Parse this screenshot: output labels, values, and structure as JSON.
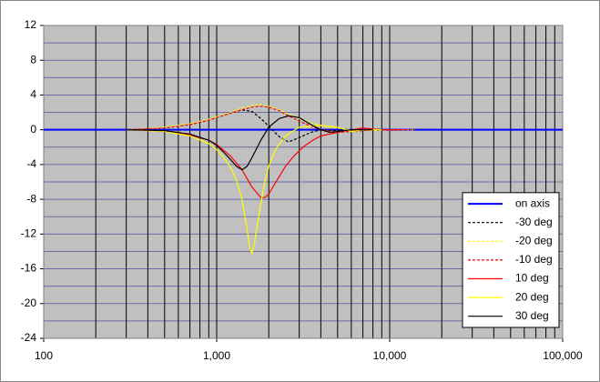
{
  "chart_data": {
    "type": "line",
    "xscale": "log",
    "xlim": [
      100,
      100000
    ],
    "ylim": [
      -24,
      12
    ],
    "xticks": [
      {
        "value": 100,
        "label": "100"
      },
      {
        "value": 1000,
        "label": "1,000"
      },
      {
        "value": 10000,
        "label": "10,000"
      },
      {
        "value": 100000,
        "label": "100,000"
      }
    ],
    "yticks": [
      12,
      8,
      4,
      0,
      -4,
      -8,
      -12,
      -16,
      -20,
      -24
    ],
    "grid": true,
    "minor_grid": true,
    "legend": "lower right",
    "series": [
      {
        "name": "on axis",
        "color": "#0000ff",
        "dash": false,
        "x": [
          100,
          100000
        ],
        "values": [
          0,
          0
        ]
      },
      {
        "name": "-30 deg",
        "color": "#000000",
        "dash": true,
        "x": [
          300,
          500,
          700,
          900,
          1000,
          1200,
          1400,
          1600,
          1800,
          2000,
          2300,
          2600,
          3000,
          3500,
          4000,
          5000,
          7000,
          10000
        ],
        "values": [
          0,
          0.2,
          0.6,
          1.1,
          1.4,
          1.9,
          2.3,
          2.1,
          1.3,
          0.4,
          -0.8,
          -1.4,
          -0.9,
          -0.3,
          0,
          -0.1,
          0,
          0
        ]
      },
      {
        "name": "-20 deg",
        "color": "#ffff00",
        "dash": true,
        "x": [
          300,
          500,
          700,
          900,
          1000,
          1200,
          1400,
          1600,
          1800,
          2000,
          2300,
          2600,
          3000,
          3500,
          4000,
          5000,
          6000,
          8000,
          10000,
          14000
        ],
        "values": [
          0,
          0.3,
          0.7,
          1.2,
          1.5,
          2,
          2.5,
          2.8,
          2.9,
          2.7,
          2.3,
          1.8,
          1.3,
          0.8,
          0.5,
          0.2,
          0,
          -0.1,
          0,
          0
        ]
      },
      {
        "name": "-10 deg",
        "color": "#ff0000",
        "dash": true,
        "x": [
          300,
          500,
          700,
          900,
          1000,
          1200,
          1400,
          1600,
          1800,
          2000,
          2300,
          2600,
          3000,
          3500,
          4000,
          5000,
          6000,
          8000,
          10000,
          14000
        ],
        "values": [
          0,
          0.2,
          0.6,
          1.1,
          1.4,
          1.9,
          2.3,
          2.6,
          2.7,
          2.6,
          2.2,
          1.6,
          1,
          0.4,
          0,
          -0.3,
          -0.2,
          0,
          0,
          0
        ]
      },
      {
        "name": "10 deg",
        "color": "#ff0000",
        "dash": false,
        "x": [
          300,
          500,
          700,
          900,
          1000,
          1200,
          1400,
          1600,
          1800,
          1900,
          2000,
          2200,
          2500,
          2800,
          3200,
          3600,
          4000,
          5000,
          6000,
          7000,
          9000,
          12000
        ],
        "values": [
          0,
          -0.2,
          -0.6,
          -1.2,
          -1.7,
          -3,
          -4.6,
          -6.6,
          -7.8,
          -7.8,
          -7.4,
          -6,
          -4.2,
          -3,
          -1.9,
          -1.2,
          -0.7,
          -0.3,
          0,
          0.2,
          0,
          0
        ]
      },
      {
        "name": "20 deg",
        "color": "#ffff00",
        "dash": false,
        "x": [
          300,
          500,
          700,
          900,
          1000,
          1100,
          1200,
          1300,
          1400,
          1500,
          1550,
          1600,
          1650,
          1700,
          1800,
          1900,
          2000,
          2200,
          2500,
          3000,
          4000,
          5000,
          6000,
          7000,
          9000
        ],
        "values": [
          0,
          -0.2,
          -0.7,
          -1.6,
          -2.3,
          -3.2,
          -4.3,
          -5.8,
          -8,
          -11.5,
          -13.5,
          -14.2,
          -13.2,
          -11.5,
          -8.5,
          -6,
          -4.2,
          -2.2,
          -0.7,
          0.3,
          0.5,
          0.3,
          -0.2,
          0,
          0
        ]
      },
      {
        "name": "30 deg",
        "color": "#000000",
        "dash": false,
        "x": [
          300,
          500,
          700,
          900,
          1000,
          1100,
          1200,
          1300,
          1400,
          1500,
          1600,
          1800,
          2000,
          2300,
          2600,
          3000,
          3500,
          4000,
          4500,
          5000,
          6000,
          8000
        ],
        "values": [
          0,
          -0.1,
          -0.5,
          -1.2,
          -1.8,
          -2.6,
          -3.4,
          -4.2,
          -4.6,
          -4.2,
          -3.2,
          -1.2,
          0.3,
          1.3,
          1.6,
          1.4,
          0.6,
          0,
          -0.3,
          -0.2,
          0,
          0
        ]
      }
    ]
  }
}
